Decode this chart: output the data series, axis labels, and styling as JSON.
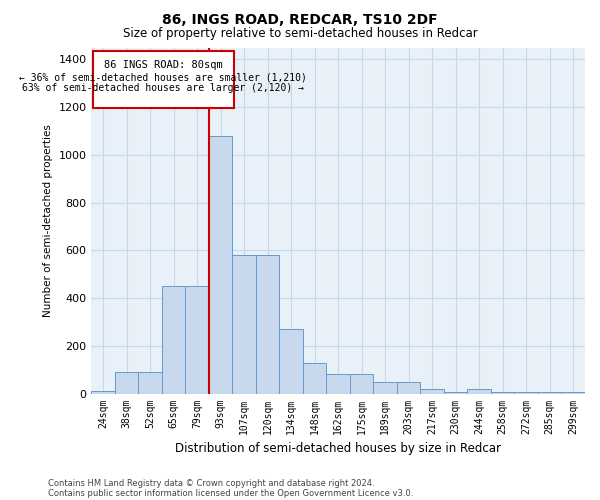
{
  "title": "86, INGS ROAD, REDCAR, TS10 2DF",
  "subtitle": "Size of property relative to semi-detached houses in Redcar",
  "xlabel": "Distribution of semi-detached houses by size in Redcar",
  "ylabel": "Number of semi-detached properties",
  "footnote1": "Contains HM Land Registry data © Crown copyright and database right 2024.",
  "footnote2": "Contains public sector information licensed under the Open Government Licence v3.0.",
  "property_label": "86 INGS ROAD: 80sqm",
  "pct_smaller": 36,
  "pct_larger": 63,
  "n_smaller": 1210,
  "n_larger": 2120,
  "bar_categories": [
    "24sqm",
    "38sqm",
    "52sqm",
    "65sqm",
    "79sqm",
    "93sqm",
    "107sqm",
    "120sqm",
    "134sqm",
    "148sqm",
    "162sqm",
    "175sqm",
    "189sqm",
    "203sqm",
    "217sqm",
    "230sqm",
    "244sqm",
    "258sqm",
    "272sqm",
    "285sqm",
    "299sqm"
  ],
  "bar_values": [
    10,
    90,
    90,
    450,
    450,
    1080,
    580,
    580,
    270,
    130,
    80,
    80,
    50,
    50,
    20,
    5,
    20,
    5,
    5,
    5,
    5
  ],
  "bar_color": "#c8d9ee",
  "bar_edge_color": "#6699cc",
  "vline_color": "#cc0000",
  "vline_x_index": 4,
  "annotation_box_color": "#cc0000",
  "ylim": [
    0,
    1450
  ],
  "yticks": [
    0,
    200,
    400,
    600,
    800,
    1000,
    1200,
    1400
  ],
  "grid_color": "#c8d8e8",
  "background_color": "#e8f0f8"
}
